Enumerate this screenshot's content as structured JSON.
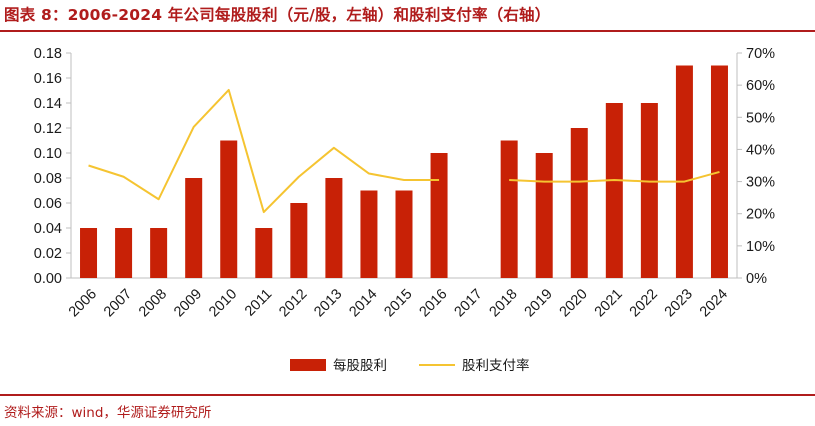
{
  "title": "图表 8：2006-2024 年公司每股股利（元/股，左轴）和股利支付率（右轴）",
  "source": "资料来源：wind，华源证券研究所",
  "colors": {
    "bar": "#c82106",
    "line": "#f5c431",
    "accent": "#b01c1c",
    "axis": "#bfbfbf"
  },
  "chart_data": {
    "type": "bar",
    "categories": [
      "2006",
      "2007",
      "2008",
      "2009",
      "2010",
      "2011",
      "2012",
      "2013",
      "2014",
      "2015",
      "2016",
      "2017",
      "2018",
      "2019",
      "2020",
      "2021",
      "2022",
      "2023",
      "2024"
    ],
    "series": [
      {
        "name": "每股股利",
        "type": "bar",
        "axis": "left",
        "values": [
          0.04,
          0.04,
          0.04,
          0.08,
          0.11,
          0.04,
          0.06,
          0.08,
          0.07,
          0.07,
          0.1,
          null,
          0.11,
          0.1,
          0.12,
          0.14,
          0.14,
          0.17,
          0.17
        ]
      },
      {
        "name": "股利支付率",
        "type": "line",
        "axis": "right",
        "values": [
          35,
          31.5,
          24.5,
          47,
          58.5,
          20.5,
          31.5,
          40.5,
          32.5,
          30.5,
          30.5,
          null,
          30.5,
          30,
          30,
          30.5,
          30,
          30,
          33
        ]
      }
    ],
    "y_left": {
      "ylim": [
        0,
        0.18
      ],
      "ticks": [
        "0.00",
        "0.02",
        "0.04",
        "0.06",
        "0.08",
        "0.10",
        "0.12",
        "0.14",
        "0.16",
        "0.18"
      ]
    },
    "y_right": {
      "ylim": [
        0,
        70
      ],
      "ticks": [
        "0%",
        "10%",
        "20%",
        "30%",
        "40%",
        "50%",
        "60%",
        "70%"
      ]
    },
    "grid": false,
    "legend": "bottom-center"
  }
}
